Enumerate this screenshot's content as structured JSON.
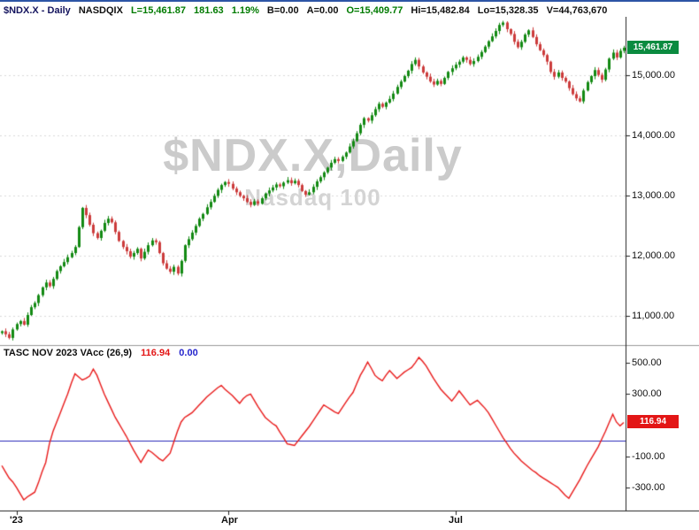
{
  "header": {
    "symbol_title": "$NDX.X - Daily",
    "exchange": "NASDQIX",
    "last": "L=15,461.87",
    "change": "181.63",
    "change_pct": "1.19%",
    "bid": "B=0.00",
    "ask": "A=0.00",
    "open": "O=15,409.77",
    "high": "Hi=15,482.84",
    "low": "Lo=15,328.35",
    "volume": "V=44,763,670"
  },
  "price_pane": {
    "watermark_title": "$NDX.X,Daily",
    "watermark_subtitle": "Nasdaq 100",
    "axis_labels": [
      "15,000.00",
      "14,000.00",
      "13,000.00",
      "12,000.00",
      "11,000.00"
    ],
    "last_price_badge": "15,461.87"
  },
  "indicator_pane": {
    "label": "TASC NOV 2023 VAcc (26,9)",
    "value": "116.94",
    "zero_value": "0.00",
    "axis_labels": [
      "500.00",
      "300.00",
      "-100.00",
      "-300.00"
    ],
    "value_badge": "116.94"
  },
  "time_axis": {
    "labels": [
      "'23",
      "Apr",
      "Jul"
    ]
  },
  "colors": {
    "up": "#128912",
    "down": "#cc3b3b",
    "indicator_line": "#e81a1a",
    "zero_line": "#2a2ab8",
    "grid": "#d9d9d9",
    "price_badge_bg": "#0b8b40",
    "value_badge_bg": "#e31616",
    "accent_topbar": "#2d55a5"
  },
  "chart_data": [
    {
      "type": "candlestick",
      "symbol": "$NDX.X",
      "timeframe": "Daily",
      "title": "$NDX.X,Daily",
      "subtitle": "Nasdaq 100",
      "x_axis_labels": [
        "'23",
        "Apr",
        "Jul"
      ],
      "x_label_indices": [
        4,
        62,
        124
      ],
      "y_axis_ticks": [
        15000,
        14000,
        13000,
        12000,
        11000
      ],
      "ylim": [
        10550,
        15990
      ],
      "grid": "horizontal-dashed",
      "last_price": 15461.87,
      "last_bar": {
        "open": 15409.77,
        "high": 15482.84,
        "low": 15328.35,
        "close": 15461.87
      },
      "up_color": "#128912",
      "down_color": "#cc3b3b",
      "closes": [
        10750,
        10700,
        10640,
        10780,
        10870,
        10920,
        10860,
        11020,
        11150,
        11220,
        11350,
        11480,
        11560,
        11500,
        11620,
        11750,
        11830,
        11900,
        11980,
        12050,
        12150,
        12480,
        12800,
        12680,
        12520,
        12380,
        12300,
        12420,
        12550,
        12620,
        12560,
        12400,
        12250,
        12150,
        12080,
        11990,
        12050,
        12120,
        11960,
        12070,
        12180,
        12260,
        12230,
        12050,
        11880,
        11790,
        11740,
        11820,
        11710,
        11920,
        12180,
        12280,
        12390,
        12500,
        12620,
        12700,
        12810,
        12900,
        13000,
        13100,
        13180,
        13230,
        13200,
        13120,
        13060,
        13000,
        12960,
        12900,
        12850,
        12910,
        12870,
        12960,
        13040,
        13090,
        13140,
        13190,
        13160,
        13220,
        13260,
        13210,
        13250,
        13180,
        13080,
        13020,
        13060,
        13150,
        13240,
        13310,
        13390,
        13470,
        13550,
        13610,
        13580,
        13650,
        13720,
        13820,
        13910,
        14040,
        14180,
        14290,
        14250,
        14340,
        14440,
        14530,
        14480,
        14550,
        14610,
        14700,
        14810,
        14900,
        14990,
        15080,
        15190,
        15260,
        15150,
        15050,
        14980,
        14900,
        14850,
        14910,
        14860,
        14960,
        15060,
        15120,
        15180,
        15230,
        15300,
        15260,
        15190,
        15240,
        15310,
        15390,
        15480,
        15570,
        15650,
        15740,
        15840,
        15880,
        15770,
        15690,
        15560,
        15470,
        15560,
        15680,
        15750,
        15640,
        15520,
        15420,
        15340,
        15230,
        15060,
        14980,
        15050,
        14960,
        14900,
        14790,
        14690,
        14620,
        14570,
        14750,
        14890,
        14990,
        15090,
        15010,
        14930,
        15100,
        15280,
        15380,
        15300,
        15410,
        15461.87
      ]
    },
    {
      "type": "line",
      "name": "TASC NOV 2023 VAcc (26,9)",
      "line_color": "#e81a1a",
      "zero_line_color": "#2a2ab8",
      "zero_line_value": 0,
      "last_value": 116.94,
      "y_axis_ticks": [
        500,
        300,
        -100,
        -300
      ],
      "ylim": [
        -420,
        580
      ],
      "grid": "none",
      "values": [
        -160,
        -200,
        -240,
        -265,
        -300,
        -340,
        -380,
        -360,
        -345,
        -330,
        -270,
        -200,
        -140,
        -20,
        60,
        120,
        180,
        240,
        300,
        370,
        430,
        410,
        390,
        400,
        415,
        460,
        420,
        360,
        300,
        250,
        200,
        150,
        110,
        70,
        30,
        -15,
        -60,
        -100,
        -140,
        -100,
        -60,
        -75,
        -95,
        -115,
        -130,
        -105,
        -80,
        -10,
        60,
        120,
        150,
        165,
        180,
        205,
        230,
        255,
        280,
        300,
        320,
        340,
        355,
        330,
        310,
        290,
        265,
        240,
        270,
        290,
        300,
        260,
        220,
        185,
        150,
        130,
        110,
        95,
        55,
        20,
        -20,
        -25,
        -30,
        0,
        30,
        60,
        90,
        125,
        160,
        195,
        230,
        215,
        200,
        185,
        175,
        210,
        245,
        280,
        310,
        365,
        420,
        460,
        505,
        465,
        420,
        400,
        385,
        420,
        450,
        425,
        400,
        420,
        440,
        455,
        470,
        500,
        535,
        510,
        480,
        440,
        400,
        365,
        330,
        305,
        280,
        255,
        285,
        320,
        290,
        260,
        230,
        245,
        260,
        235,
        210,
        180,
        140,
        100,
        60,
        20,
        -15,
        -50,
        -80,
        -105,
        -130,
        -150,
        -170,
        -190,
        -205,
        -225,
        -240,
        -255,
        -270,
        -285,
        -300,
        -325,
        -350,
        -370,
        -330,
        -290,
        -250,
        -205,
        -160,
        -120,
        -80,
        -40,
        10,
        60,
        115,
        170,
        120,
        95,
        116.94
      ]
    }
  ]
}
